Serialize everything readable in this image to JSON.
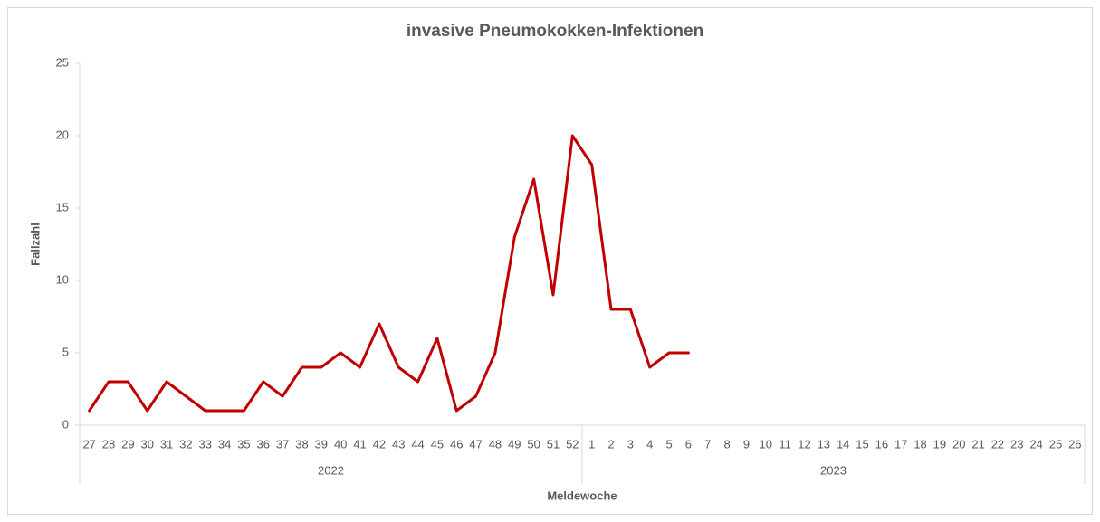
{
  "chart_data": {
    "type": "line",
    "title": "invasive Pneumokokken-Infektionen",
    "x_label": "Meldewoche",
    "y_label": "Fallzahl",
    "category_groups": [
      {
        "label": "2022",
        "categories": [
          "27",
          "28",
          "29",
          "30",
          "31",
          "32",
          "33",
          "34",
          "35",
          "36",
          "37",
          "38",
          "39",
          "40",
          "41",
          "42",
          "43",
          "44",
          "45",
          "46",
          "47",
          "48",
          "49",
          "50",
          "51",
          "52"
        ]
      },
      {
        "label": "2023",
        "categories": [
          "1",
          "2",
          "3",
          "4",
          "5",
          "6",
          "7",
          "8",
          "9",
          "10",
          "11",
          "12",
          "13",
          "14",
          "15",
          "16",
          "17",
          "18",
          "19",
          "20",
          "21",
          "22",
          "23",
          "24",
          "25",
          "26"
        ]
      }
    ],
    "series": [
      {
        "name": "Fallzahl",
        "color": "#c00000",
        "values": [
          1,
          3,
          3,
          1,
          3,
          2,
          1,
          1,
          1,
          3,
          2,
          4,
          4,
          5,
          4,
          7,
          4,
          3,
          6,
          1,
          2,
          5,
          13,
          17,
          9,
          20,
          18,
          8,
          8,
          4,
          5,
          5,
          null,
          null,
          null,
          null,
          null,
          null,
          null,
          null,
          null,
          null,
          null,
          null,
          null,
          null,
          null,
          null,
          null,
          null,
          null,
          null
        ]
      }
    ],
    "ylim": [
      0,
      25
    ],
    "yticks": [
      0,
      5,
      10,
      15,
      20,
      25
    ],
    "grid": false
  }
}
